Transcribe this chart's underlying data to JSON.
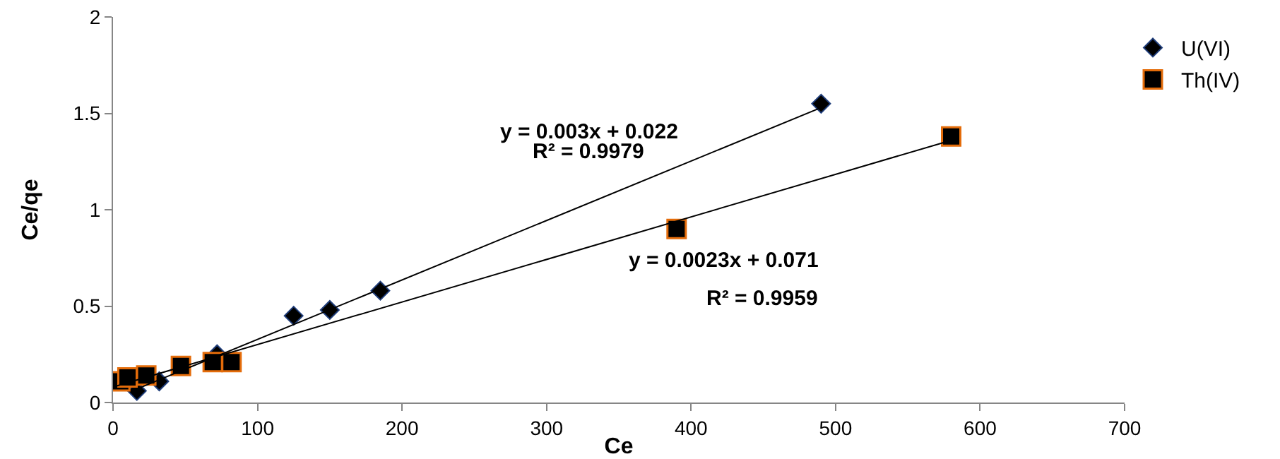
{
  "chart_data": {
    "type": "scatter",
    "xlabel": "Ce",
    "ylabel": "Ce/qe",
    "xlim": [
      0,
      700
    ],
    "xticks": [
      0,
      100,
      200,
      300,
      400,
      500,
      600,
      700
    ],
    "ylim": [
      0,
      2
    ],
    "yticks": [
      0,
      0.5,
      1,
      1.5,
      2
    ],
    "grid": false,
    "legend": "top right",
    "series": [
      {
        "name": "U(VI)",
        "color": "#000000",
        "marker": "diamond",
        "x": [
          16.5,
          32,
          72,
          125,
          150,
          185,
          490
        ],
        "values": [
          0.06,
          0.11,
          0.25,
          0.45,
          0.48,
          0.58,
          1.55
        ]
      },
      {
        "name": "Th(IV)",
        "color": "#000000",
        "marker": "square",
        "x": [
          5,
          10,
          23,
          47,
          69,
          82,
          390,
          580
        ],
        "values": [
          0.11,
          0.13,
          0.14,
          0.19,
          0.21,
          0.21,
          0.9,
          1.38
        ]
      },
      {
        "type": "line",
        "color": "#000000",
        "marker": "none",
        "line_style": "solid",
        "x": [
          16.5,
          490
        ],
        "values": [
          0.07,
          1.53
        ]
      },
      {
        "type": "line",
        "color": "#000000",
        "marker": "none",
        "line_style": "solid",
        "x": [
          0,
          580
        ],
        "values": [
          0.08,
          1.36
        ]
      }
    ],
    "annotations": [
      "y = 0.003x + 0.022",
      "R² = 0.9979",
      "y = 0.0023x + 0.071",
      "R² = 0.9959"
    ]
  }
}
